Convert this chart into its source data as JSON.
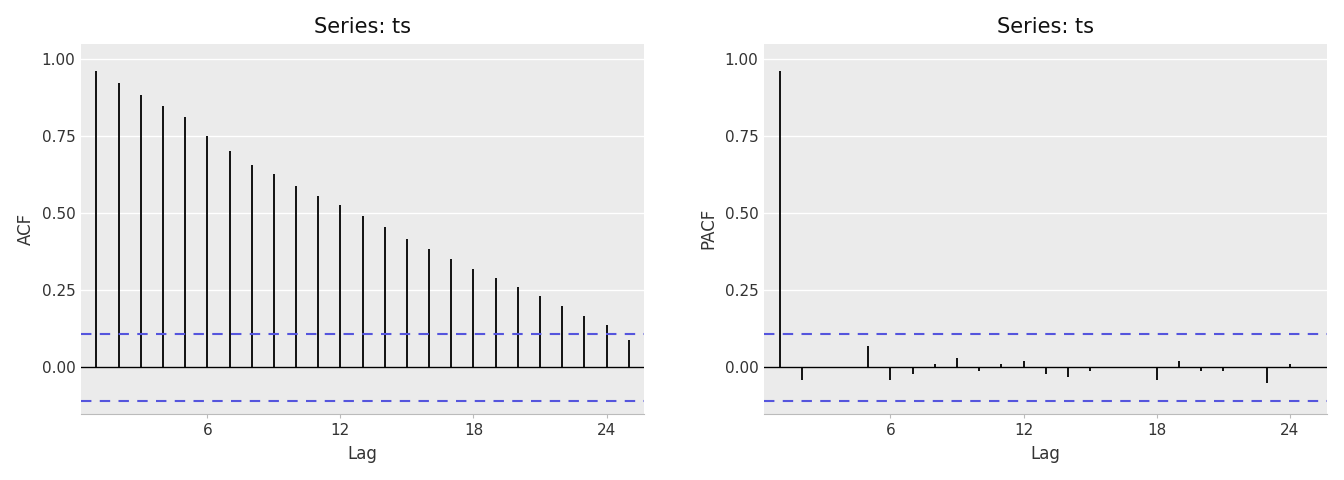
{
  "acf_title": "Series: ts",
  "pacf_title": "Series: ts",
  "acf_ylabel": "ACF",
  "pacf_ylabel": "PACF",
  "xlabel": "Lag",
  "acf_lags": [
    1,
    2,
    3,
    4,
    5,
    6,
    7,
    8,
    9,
    10,
    11,
    12,
    13,
    14,
    15,
    16,
    17,
    18,
    19,
    20,
    21,
    22,
    23,
    24,
    25
  ],
  "acf_values": [
    0.963,
    0.924,
    0.885,
    0.848,
    0.811,
    0.752,
    0.703,
    0.657,
    0.627,
    0.588,
    0.556,
    0.526,
    0.49,
    0.455,
    0.418,
    0.385,
    0.351,
    0.32,
    0.289,
    0.26,
    0.233,
    0.2,
    0.168,
    0.137,
    0.088
  ],
  "pacf_lags": [
    1,
    2,
    3,
    4,
    5,
    6,
    7,
    8,
    9,
    10,
    11,
    12,
    13,
    14,
    15,
    16,
    17,
    18,
    19,
    20,
    21,
    22,
    23,
    24
  ],
  "pacf_values": [
    0.963,
    -0.04,
    0.0,
    0.0,
    0.07,
    -0.04,
    -0.02,
    0.01,
    0.03,
    -0.01,
    0.01,
    0.02,
    -0.02,
    -0.03,
    -0.01,
    0.0,
    0.0,
    -0.04,
    0.02,
    -0.01,
    -0.01,
    0.0,
    -0.05,
    0.01
  ],
  "ci_upper": 0.11,
  "ci_lower": -0.11,
  "ylim": [
    -0.15,
    1.05
  ],
  "yticks": [
    0.0,
    0.25,
    0.5,
    0.75,
    1.0
  ],
  "xticks": [
    6,
    12,
    18,
    24
  ],
  "xlim": [
    0.3,
    25.7
  ],
  "bar_color": "#000000",
  "ci_color": "#5555dd",
  "baseline_color": "#000000",
  "panel_bg": "#ebebeb",
  "fig_bg": "#ffffff",
  "title_fontsize": 15,
  "label_fontsize": 12,
  "tick_fontsize": 11,
  "grid_color": "#ffffff",
  "grid_linewidth": 1.0,
  "stem_linewidth": 1.3,
  "ci_linewidth": 1.5,
  "baseline_linewidth": 1.0
}
